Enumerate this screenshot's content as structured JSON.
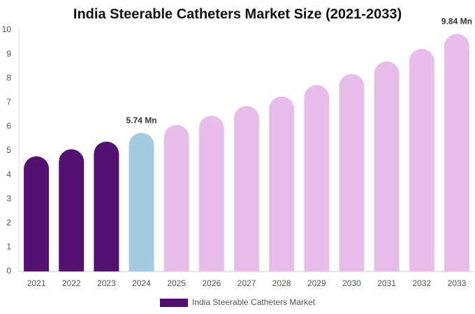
{
  "chart_data": {
    "type": "bar",
    "title": "India Steerable Catheters Market Size (2021-2033)",
    "categories": [
      "2021",
      "2022",
      "2023",
      "2024",
      "2025",
      "2026",
      "2027",
      "2028",
      "2029",
      "2030",
      "2031",
      "2032",
      "2033"
    ],
    "series": [
      {
        "name": "India Steerable Catheters Market",
        "color": "#541170",
        "colors": [
          "#541170",
          "#541170",
          "#541170",
          "#a3cbe0",
          "#e8bde9",
          "#e8bde9",
          "#e8bde9",
          "#e8bde9",
          "#e8bde9",
          "#e8bde9",
          "#e8bde9",
          "#e8bde9",
          "#e8bde9"
        ],
        "values": [
          4.77,
          5.06,
          5.38,
          5.74,
          6.07,
          6.45,
          6.85,
          7.25,
          7.72,
          8.18,
          8.7,
          9.22,
          9.84
        ],
        "value_labels": [
          null,
          null,
          null,
          "5.74 Mn",
          null,
          null,
          null,
          null,
          null,
          null,
          null,
          null,
          "9.84 Mn"
        ]
      }
    ],
    "ylim": [
      0,
      10
    ],
    "yticks": [
      0,
      1,
      2,
      3,
      4,
      5,
      6,
      7,
      8,
      9,
      10
    ],
    "grid": false
  }
}
